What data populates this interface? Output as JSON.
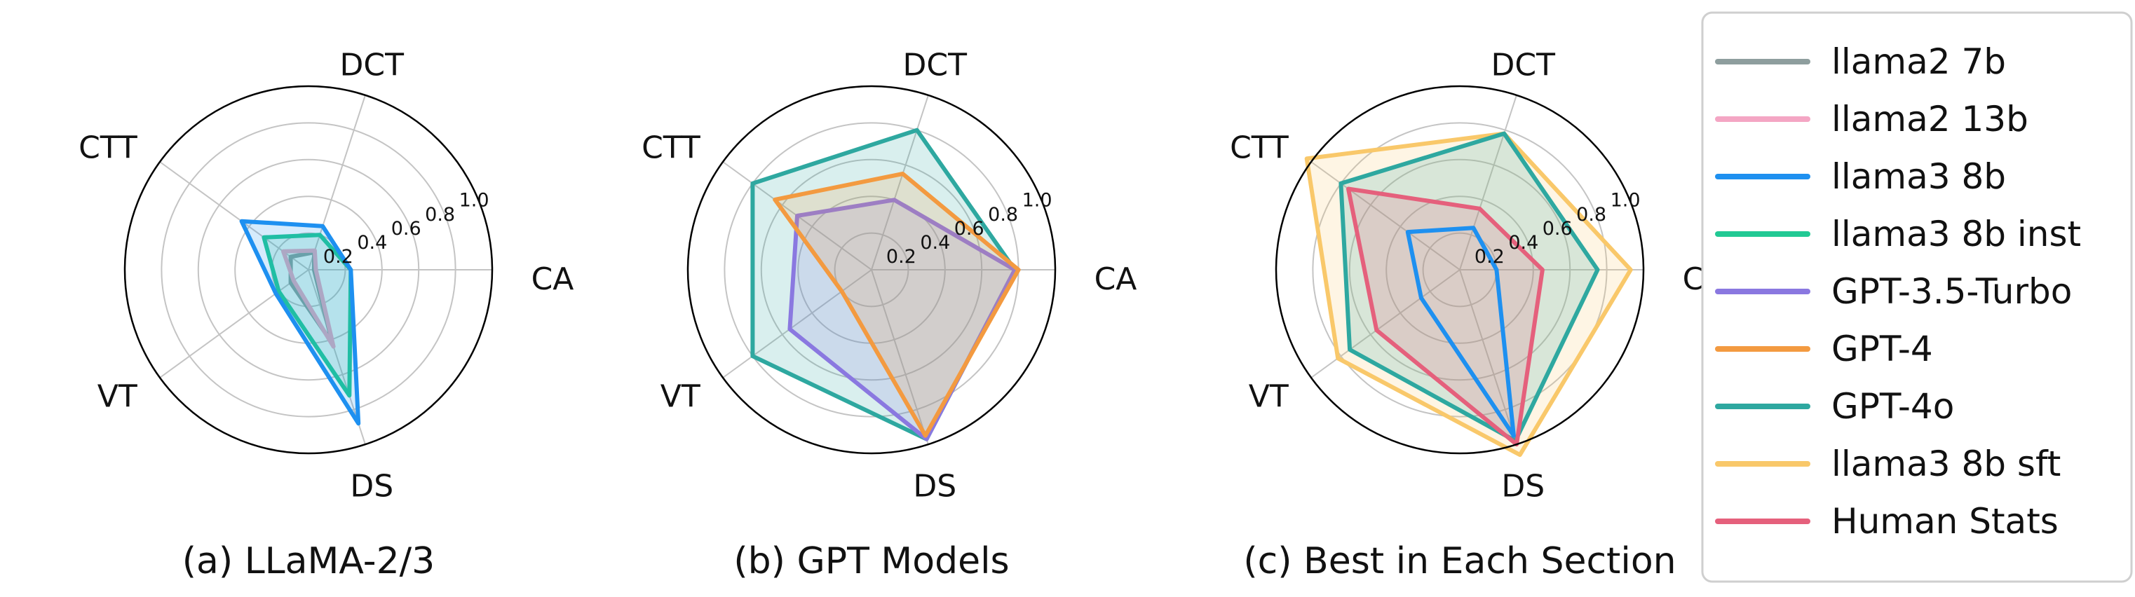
{
  "legend": [
    {
      "name": "llama2 7b",
      "color": "#8E9E9E"
    },
    {
      "name": "llama2 13b",
      "color": "#F4A6C4"
    },
    {
      "name": "llama3 8b",
      "color": "#1E90F0"
    },
    {
      "name": "llama3 8b inst",
      "color": "#22C994"
    },
    {
      "name": "GPT-3.5-Turbo",
      "color": "#8A78E0"
    },
    {
      "name": "GPT-4",
      "color": "#F39A40"
    },
    {
      "name": "GPT-4o",
      "color": "#2EA8A0"
    },
    {
      "name": "llama3 8b sft",
      "color": "#F9C86A"
    },
    {
      "name": "Human Stats",
      "color": "#E5607C"
    }
  ],
  "chart_data": [
    {
      "type": "radar",
      "caption": "(a) LLaMA-2/3",
      "axes": [
        "CA",
        "DCT",
        "CTT",
        "VT",
        "DS"
      ],
      "rlim": [
        0,
        1.0
      ],
      "rticks": [
        "0.2",
        "0.4",
        "0.6",
        "0.8",
        "1.0"
      ],
      "grid": true,
      "series": [
        {
          "name": "llama2 7b",
          "color": "#8E9E9E",
          "fill": false,
          "values": [
            0.03,
            0.1,
            0.12,
            0.12,
            0.42
          ]
        },
        {
          "name": "llama2 13b",
          "color": "#F4A6C4",
          "fill": false,
          "values": [
            0.04,
            0.11,
            0.17,
            0.1,
            0.44
          ]
        },
        {
          "name": "llama3 8b inst",
          "color": "#22C994",
          "fill": true,
          "values": [
            0.23,
            0.2,
            0.3,
            0.2,
            0.72
          ]
        },
        {
          "name": "llama3 8b",
          "color": "#1E90F0",
          "fill": true,
          "values": [
            0.23,
            0.25,
            0.45,
            0.22,
            0.88
          ]
        }
      ]
    },
    {
      "type": "radar",
      "caption": "(b) GPT Models",
      "axes": [
        "CA",
        "DCT",
        "CTT",
        "VT",
        "DS"
      ],
      "rlim": [
        0,
        1.0
      ],
      "rticks": [
        "0.2",
        "0.4",
        "0.6",
        "0.8",
        "1.0"
      ],
      "grid": true,
      "series": [
        {
          "name": "GPT-4o",
          "color": "#2EA8A0",
          "fill": true,
          "values": [
            0.78,
            0.8,
            0.8,
            0.8,
            0.97
          ]
        },
        {
          "name": "GPT-3.5-Turbo",
          "color": "#8A78E0",
          "fill": true,
          "values": [
            0.78,
            0.4,
            0.5,
            0.55,
            0.97
          ]
        },
        {
          "name": "GPT-4",
          "color": "#F39A40",
          "fill": true,
          "values": [
            0.8,
            0.55,
            0.65,
            0.2,
            0.95
          ]
        }
      ]
    },
    {
      "type": "radar",
      "caption": "(c) Best in Each Section",
      "axes": [
        "CA",
        "DCT",
        "CTT",
        "VT",
        "DS"
      ],
      "rlim": [
        0,
        1.0
      ],
      "rticks": [
        "0.2",
        "0.4",
        "0.6",
        "0.8",
        "1.0"
      ],
      "grid": true,
      "series": [
        {
          "name": "llama3 8b sft",
          "color": "#F9C86A",
          "fill": true,
          "values": [
            0.93,
            0.78,
            1.03,
            0.82,
            1.06
          ]
        },
        {
          "name": "GPT-4o",
          "color": "#2EA8A0",
          "fill": true,
          "values": [
            0.75,
            0.78,
            0.8,
            0.74,
            0.98
          ]
        },
        {
          "name": "Human Stats",
          "color": "#E5607C",
          "fill": true,
          "values": [
            0.45,
            0.35,
            0.75,
            0.56,
            1.0
          ]
        },
        {
          "name": "llama3 8b",
          "color": "#1E90F0",
          "fill": false,
          "values": [
            0.2,
            0.24,
            0.35,
            0.26,
            0.95
          ]
        }
      ]
    }
  ]
}
